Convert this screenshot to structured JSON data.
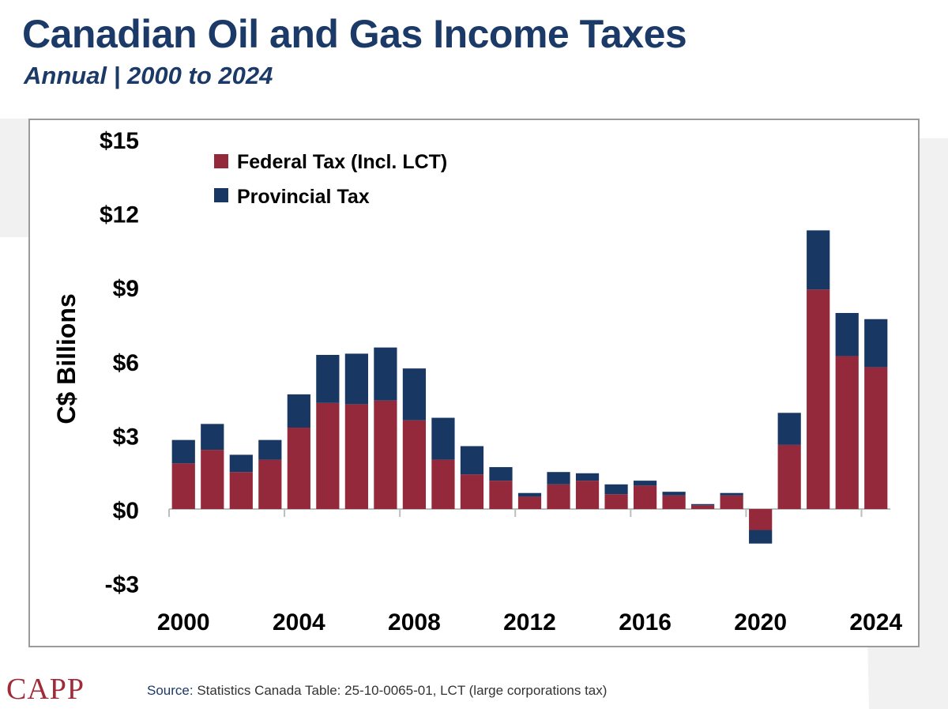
{
  "title": "Canadian Oil and Gas Income Taxes",
  "subtitle": "Annual | 2000 to 2024",
  "logo_text": "CAPP",
  "source": {
    "label": "Source:",
    "text": "Statistics Canada Table: 25-10-0065-01, LCT (large corporations tax)"
  },
  "colors": {
    "federal": "#93293a",
    "provincial": "#183763",
    "title": "#1b3a68"
  },
  "chart_data": {
    "type": "bar",
    "stacked": true,
    "ylabel": "C$ Billions",
    "ylim": [
      -3,
      15
    ],
    "yticks": [
      15,
      12,
      9,
      6,
      3,
      0,
      -3
    ],
    "ytick_labels": [
      "$15",
      "$12",
      "$9",
      "$6",
      "$3",
      "$0",
      "-$3"
    ],
    "xtick_labels": [
      "2000",
      "2004",
      "2008",
      "2012",
      "2016",
      "2020",
      "2024"
    ],
    "legend_position": "top-left",
    "categories": [
      "2000",
      "2001",
      "2002",
      "2003",
      "2004",
      "2005",
      "2006",
      "2007",
      "2008",
      "2009",
      "2010",
      "2011",
      "2012",
      "2013",
      "2014",
      "2015",
      "2016",
      "2017",
      "2018",
      "2019",
      "2020",
      "2021",
      "2022",
      "2023",
      "2024"
    ],
    "series": [
      {
        "name": "Federal Tax (Incl. LCT)",
        "color": "#93293a",
        "values": [
          1.85,
          2.4,
          1.5,
          2.0,
          3.3,
          4.3,
          4.25,
          4.4,
          3.6,
          2.0,
          1.4,
          1.15,
          0.5,
          1.0,
          1.15,
          0.6,
          0.95,
          0.55,
          0.15,
          0.55,
          -0.85,
          2.6,
          8.9,
          6.2,
          5.75
        ]
      },
      {
        "name": "Provincial Tax",
        "color": "#183763",
        "values": [
          0.95,
          1.05,
          0.7,
          0.8,
          1.35,
          1.95,
          2.05,
          2.15,
          2.1,
          1.7,
          1.15,
          0.55,
          0.15,
          0.5,
          0.3,
          0.4,
          0.2,
          0.15,
          0.05,
          0.1,
          -0.55,
          1.3,
          2.4,
          1.75,
          1.95
        ]
      }
    ]
  }
}
